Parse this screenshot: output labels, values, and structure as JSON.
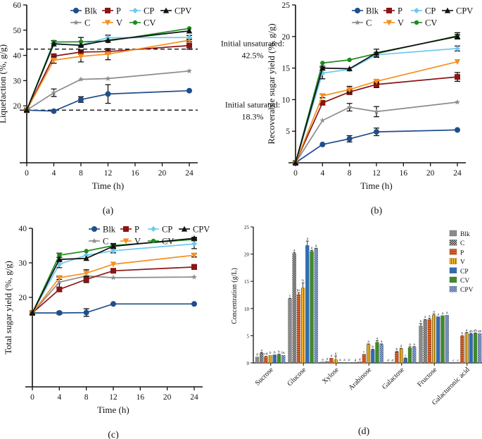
{
  "series_styles": {
    "Blk": {
      "color": "#1f4e8c",
      "marker": "circle"
    },
    "C": {
      "color": "#8c8c8c",
      "marker": "star"
    },
    "P": {
      "color": "#8b1414",
      "marker": "square"
    },
    "V": {
      "color": "#f5901e",
      "marker": "triangle-down"
    },
    "CP": {
      "color": "#6fc8f2",
      "marker": "diamond"
    },
    "CV": {
      "color": "#1f8a1f",
      "marker": "circle-small"
    },
    "CPV": {
      "color": "#111111",
      "marker": "triangle-up"
    }
  },
  "legend_order": [
    [
      "Blk",
      "P",
      "CP",
      "CPV"
    ],
    [
      "C",
      "V",
      "CV"
    ]
  ],
  "chart_data": [
    {
      "id": "a",
      "panel_label": "(a)",
      "type": "line",
      "title": "",
      "xlabel": "Time (h)",
      "ylabel": "Liquefaction (%, g/g)",
      "xlim": [
        0,
        24
      ],
      "ylim": [
        10,
        60
      ],
      "xticks": [
        0,
        4,
        8,
        12,
        16,
        20,
        24
      ],
      "yticks": [
        20,
        30,
        40,
        50,
        60
      ],
      "legend": "top",
      "x": [
        0,
        4,
        8,
        12,
        24
      ],
      "series": [
        {
          "name": "Blk",
          "values": [
            18.3,
            17.9,
            22.5,
            24.7,
            26.0
          ],
          "err": [
            0,
            0,
            1.1,
            3.7,
            0
          ]
        },
        {
          "name": "C",
          "values": [
            18.3,
            25.2,
            30.5,
            30.8,
            33.8
          ],
          "err": [
            0,
            1.5,
            0,
            0,
            0
          ]
        },
        {
          "name": "P",
          "values": [
            18.3,
            39.7,
            41.3,
            41.5,
            43.9
          ],
          "err": [
            0,
            0,
            0,
            0,
            1.5
          ]
        },
        {
          "name": "V",
          "values": [
            18.3,
            38.1,
            39.6,
            40.5,
            46.0
          ],
          "err": [
            0,
            1.2,
            2.2,
            2.2,
            0
          ]
        },
        {
          "name": "CP",
          "values": [
            18.3,
            44.4,
            44.2,
            47.0,
            47.1
          ],
          "err": [
            0,
            0,
            0,
            1.0,
            0.8
          ]
        },
        {
          "name": "CV",
          "values": [
            18.3,
            45.3,
            45.4,
            45.7,
            50.7
          ],
          "err": [
            0,
            0.6,
            1.7,
            0,
            0
          ]
        },
        {
          "name": "CPV",
          "values": [
            18.3,
            44.6,
            44.0,
            46.0,
            49.7
          ],
          "err": [
            0,
            0,
            0,
            0,
            0
          ]
        }
      ],
      "reference_lines": [
        {
          "y": 42.5,
          "label_line1": "Initial unsaturated:",
          "label_line2": "42.5%"
        },
        {
          "y": 18.3,
          "label_line1": "Initial saturated:",
          "label_line2": "18.3%"
        }
      ]
    },
    {
      "id": "b",
      "panel_label": "(b)",
      "type": "line",
      "title": "",
      "xlabel": "Time (h)",
      "ylabel": "Recoverable sugar yield (%, g/g)",
      "xlim": [
        0,
        24
      ],
      "ylim": [
        0,
        25
      ],
      "xticks": [
        0,
        4,
        8,
        12,
        16,
        20,
        24
      ],
      "yticks": [
        5,
        10,
        15,
        20,
        25
      ],
      "legend": "top-right",
      "x": [
        0,
        4,
        8,
        12,
        24
      ],
      "series": [
        {
          "name": "Blk",
          "values": [
            0,
            2.9,
            3.8,
            4.9,
            5.2
          ],
          "err": [
            0,
            0,
            0.5,
            0.6,
            0
          ]
        },
        {
          "name": "C",
          "values": [
            0,
            6.7,
            8.8,
            8.1,
            9.6
          ],
          "err": [
            0,
            0,
            0.6,
            0.8,
            0
          ]
        },
        {
          "name": "P",
          "values": [
            0,
            9.5,
            11.2,
            12.4,
            13.6
          ],
          "err": [
            0,
            0,
            0.4,
            0.5,
            0.7
          ]
        },
        {
          "name": "V",
          "values": [
            0,
            10.6,
            11.6,
            12.9,
            16.0
          ],
          "err": [
            0,
            0.3,
            0.5,
            0.3,
            0
          ]
        },
        {
          "name": "CP",
          "values": [
            0,
            14.2,
            14.8,
            17.1,
            18.1
          ],
          "err": [
            0,
            0.9,
            0,
            0.4,
            0.4
          ]
        },
        {
          "name": "CV",
          "values": [
            0,
            15.8,
            16.3,
            17.3,
            20.1
          ],
          "err": [
            0,
            0,
            0,
            0,
            0.5
          ]
        },
        {
          "name": "CPV",
          "values": [
            0,
            15.0,
            14.9,
            17.4,
            20.0
          ],
          "err": [
            0,
            0.3,
            0,
            0.6,
            0.3
          ]
        }
      ]
    },
    {
      "id": "c",
      "panel_label": "(c)",
      "type": "line",
      "title": "",
      "xlabel": "Time (h)",
      "ylabel": "Total sugar yield (%, g/g)",
      "xlim": [
        0,
        24
      ],
      "ylim": [
        10,
        40
      ],
      "xticks": [
        0,
        4,
        8,
        12,
        16,
        20,
        24
      ],
      "yticks": [
        20,
        30,
        40
      ],
      "legend": "top-right",
      "x": [
        0,
        4,
        8,
        12,
        24
      ],
      "series": [
        {
          "name": "Blk",
          "values": [
            15.5,
            15.5,
            15.6,
            18.1,
            18.1
          ],
          "err": [
            0,
            0.4,
            1.1,
            0,
            0
          ]
        },
        {
          "name": "C",
          "values": [
            15.5,
            24.4,
            26.2,
            25.7,
            25.9
          ],
          "err": [
            0,
            1.5,
            0,
            0,
            0
          ]
        },
        {
          "name": "P",
          "values": [
            15.5,
            22.3,
            25.2,
            27.7,
            28.8
          ],
          "err": [
            0,
            0.6,
            0.9,
            0.6,
            0.7
          ]
        },
        {
          "name": "V",
          "values": [
            15.5,
            25.7,
            27.0,
            29.6,
            32.2
          ],
          "err": [
            0,
            0.5,
            1.0,
            0,
            0.5
          ]
        },
        {
          "name": "CP",
          "values": [
            15.5,
            29.6,
            32.2,
            33.5,
            35.5
          ],
          "err": [
            0,
            1.0,
            0,
            0.6,
            1.4
          ]
        },
        {
          "name": "CV",
          "values": [
            15.5,
            32.2,
            33.4,
            35.0,
            36.8
          ],
          "err": [
            0,
            0.6,
            0,
            0.6,
            0.4
          ]
        },
        {
          "name": "CPV",
          "values": [
            15.5,
            31.0,
            31.3,
            34.8,
            37.1
          ],
          "err": [
            0,
            0.6,
            0,
            0.6,
            0.3
          ]
        }
      ]
    },
    {
      "id": "d",
      "panel_label": "(d)",
      "type": "bar",
      "title": "",
      "xlabel": "",
      "ylabel": "Concentration (g/L)",
      "ylim": [
        0,
        25
      ],
      "yticks": [
        0,
        5,
        10,
        15,
        20,
        25
      ],
      "legend": "top-right",
      "categories": [
        "Sucrose",
        "Glucose",
        "Xylose",
        "Arabinose",
        "Galactose",
        "Fructose",
        "Galacturonic acid"
      ],
      "series": [
        {
          "name": "Blk",
          "color": "#8a8a8a",
          "pattern": "solid",
          "values": [
            1.1,
            11.8,
            0.2,
            0.0,
            0.0,
            6.8,
            0.0
          ],
          "err": [
            0,
            0.1,
            0,
            0,
            0,
            0.4,
            0
          ],
          "letters": [
            "d",
            "c",
            "a",
            "d",
            "d",
            "b",
            "c"
          ]
        },
        {
          "name": "C",
          "color": "#3a3a3a",
          "pattern": "checker",
          "values": [
            1.8,
            20.1,
            0.3,
            0.2,
            0.0,
            7.9,
            0.0
          ],
          "err": [
            0.1,
            0.2,
            0,
            0,
            0,
            0.1,
            0
          ],
          "letters": [
            "a",
            "a",
            "a",
            "d",
            "d",
            "a",
            "c"
          ]
        },
        {
          "name": "P",
          "color": "#e0642a",
          "pattern": "hstripe",
          "values": [
            1.1,
            12.6,
            0.9,
            1.6,
            2.0,
            8.0,
            4.9
          ],
          "err": [
            0.1,
            0.3,
            0,
            0,
            0.1,
            0.2,
            0.1
          ],
          "letters": [
            "cd",
            "bc",
            "a",
            "c",
            "b",
            "a",
            "b"
          ]
        },
        {
          "name": "V",
          "color": "#e8a61a",
          "pattern": "vstripe",
          "values": [
            1.4,
            13.8,
            0.6,
            3.4,
            2.6,
            8.8,
            5.5
          ],
          "err": [
            0,
            0.9,
            0.7,
            0.1,
            0.1,
            0.2,
            0.1
          ],
          "letters": [
            "b",
            "b",
            "a",
            "a",
            "a",
            "a",
            "a"
          ]
        },
        {
          "name": "CP",
          "color": "#2e6db5",
          "pattern": "solid",
          "values": [
            1.5,
            21.6,
            0.1,
            2.4,
            0.8,
            8.5,
            5.3
          ],
          "err": [
            0,
            0.8,
            0,
            0.1,
            0.1,
            0,
            0.1
          ],
          "letters": [
            "b",
            "a",
            "a",
            "b",
            "c",
            "a",
            "ab"
          ]
        },
        {
          "name": "CV",
          "color": "#3f8a2a",
          "pattern": "solid",
          "values": [
            1.5,
            20.5,
            0.1,
            3.8,
            2.8,
            8.7,
            5.4
          ],
          "err": [
            0.1,
            0.2,
            0,
            0.3,
            0.2,
            0,
            0.1
          ],
          "letters": [
            "b",
            "a",
            "a",
            "a",
            "a",
            "a",
            "ab"
          ]
        },
        {
          "name": "CPV",
          "color": "#4a6ea8",
          "pattern": "checker",
          "values": [
            1.4,
            21.0,
            0.1,
            3.4,
            2.9,
            8.8,
            5.4
          ],
          "err": [
            0,
            0.1,
            0,
            0.1,
            0.1,
            0,
            0
          ],
          "letters": [
            "bc",
            "a",
            "a",
            "a",
            "a",
            "a",
            "ab"
          ]
        }
      ]
    }
  ]
}
